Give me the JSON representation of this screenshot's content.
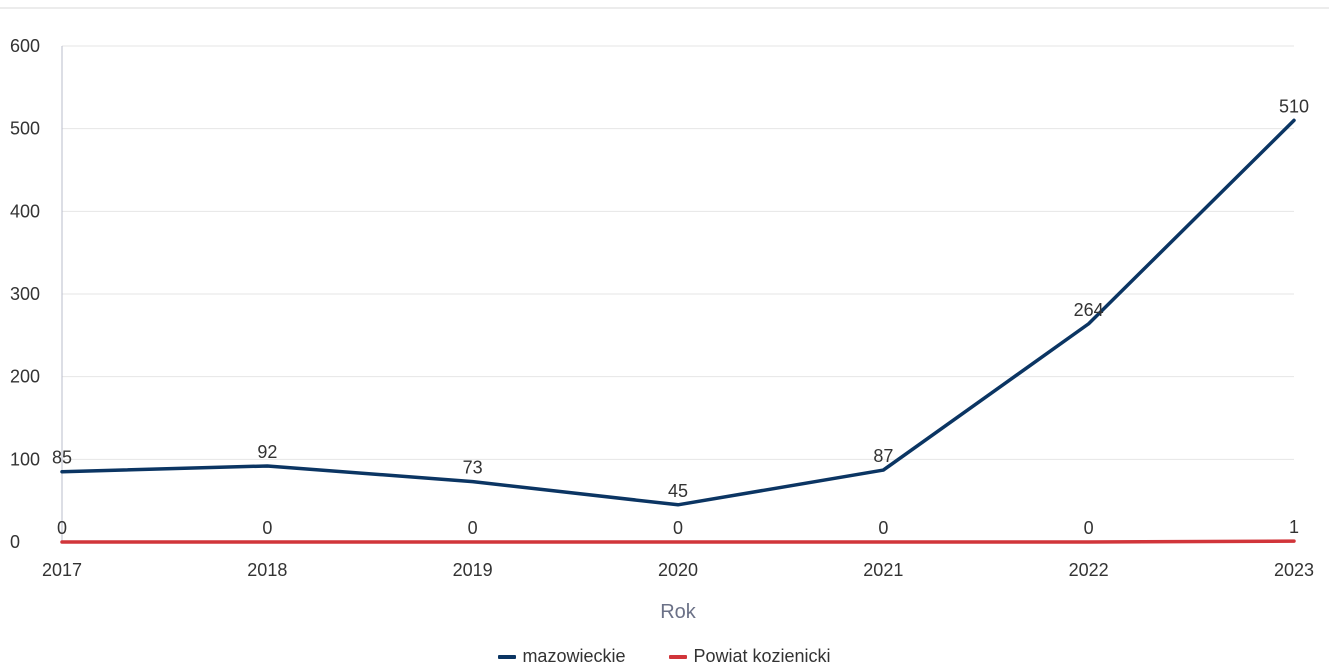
{
  "chart_data": {
    "type": "line",
    "x": [
      "2017",
      "2018",
      "2019",
      "2020",
      "2021",
      "2022",
      "2023"
    ],
    "xlabel": "Rok",
    "ylabel": "",
    "ylim": [
      0,
      600
    ],
    "yticks": [
      "0",
      "100",
      "200",
      "300",
      "400",
      "500",
      "600"
    ],
    "grid": true,
    "legend": "bottom-center",
    "series": [
      {
        "name": "mazowieckie",
        "color": "#0b3563",
        "values": [
          85,
          92,
          73,
          45,
          87,
          264,
          510
        ]
      },
      {
        "name": "Powiat kozienicki",
        "color": "#d1353a",
        "values": [
          0,
          0,
          0,
          0,
          0,
          0,
          1
        ]
      }
    ]
  }
}
